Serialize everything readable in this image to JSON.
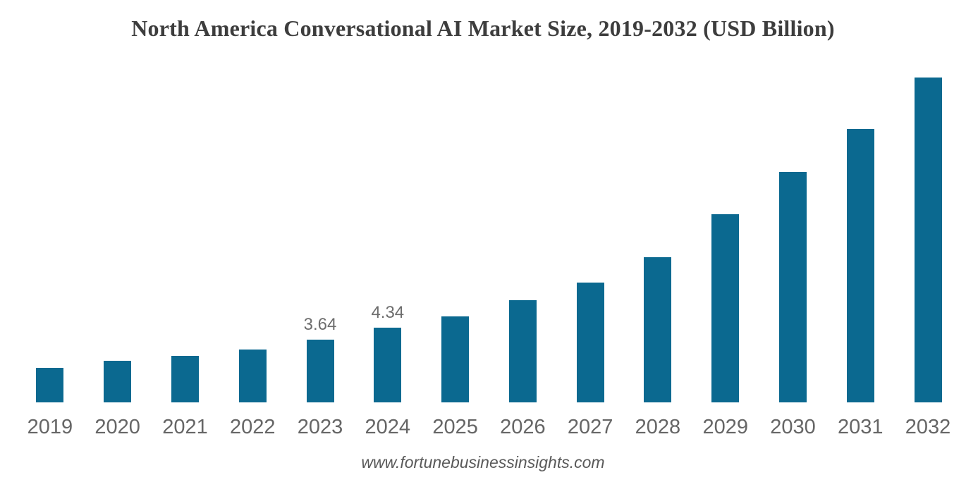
{
  "figure": {
    "title": "North America Conversational AI Market Size, 2019-2032 (USD Billion)",
    "source": "www.fortunebusinessinsights.com"
  },
  "colors": {
    "background": "#ffffff",
    "bar": "#0b6990",
    "title_text": "#3d3d3d",
    "year_label_text": "#666666",
    "value_label_text": "#6d6d6d",
    "source_text": "#595959"
  },
  "chart_data": {
    "type": "bar",
    "title": "North America Conversational AI Market Size, 2019-2032 (USD Billion)",
    "unit": "USD Billion",
    "categories": [
      "2019",
      "2020",
      "2021",
      "2022",
      "2023",
      "2024",
      "2025",
      "2026",
      "2027",
      "2028",
      "2029",
      "2030",
      "2031",
      "2032"
    ],
    "values": [
      2.0,
      2.4,
      2.7,
      3.08,
      3.64,
      4.34,
      5.01,
      5.93,
      6.95,
      8.44,
      10.92,
      13.39,
      15.86,
      18.84
    ],
    "data_labels": {
      "2023": "3.64",
      "2024": "4.34"
    },
    "xlabel": "",
    "ylabel": "",
    "ylim": [
      0,
      19.5
    ],
    "grid": false,
    "legend": false,
    "bar_color": "#0b6990"
  }
}
